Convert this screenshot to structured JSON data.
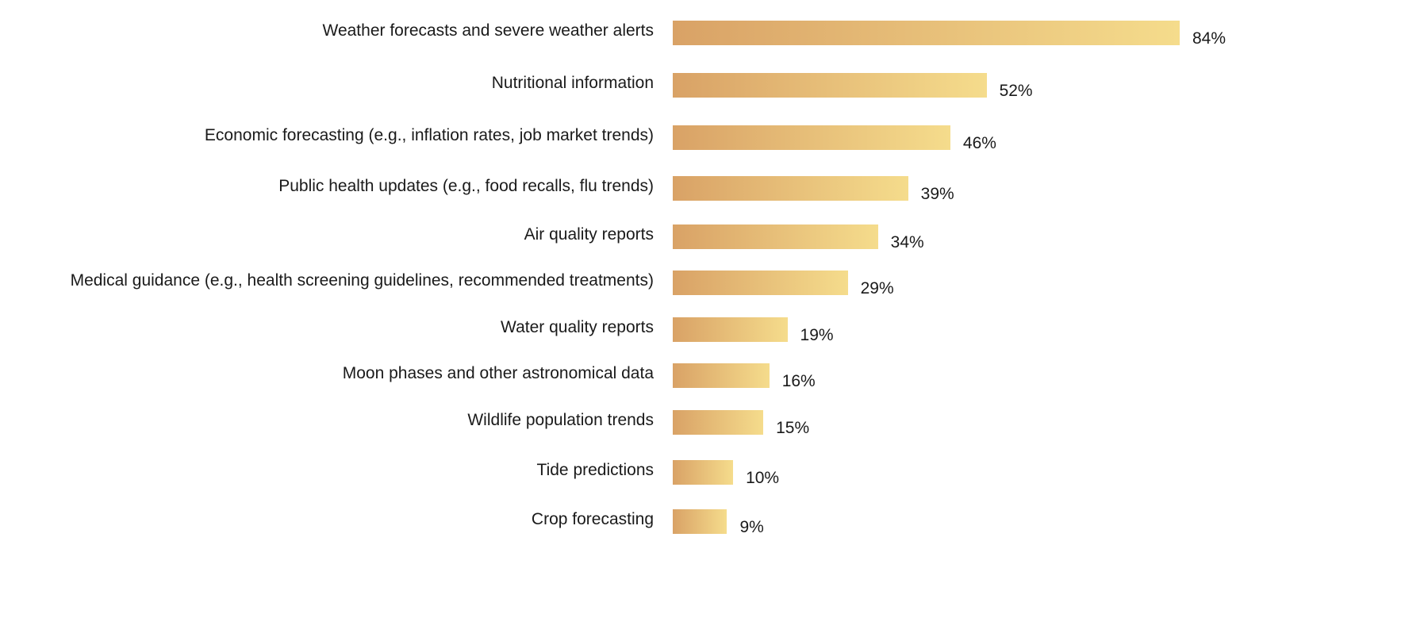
{
  "chart_data": {
    "type": "bar",
    "orientation": "horizontal",
    "title": "",
    "xlabel": "",
    "ylabel": "",
    "xlim": [
      0,
      84
    ],
    "grid": false,
    "value_format": "percent",
    "gradient_colors": [
      "#d9a266",
      "#f5dc8c"
    ],
    "categories": [
      "Weather forecasts and severe weather alerts",
      "Nutritional information",
      "Economic forecasting (e.g., inflation rates, job market trends)",
      "Public health updates (e.g., food recalls, flu trends)",
      "Air quality reports",
      "Medical guidance (e.g., health screening guidelines, recommended treatments)",
      "Water quality reports",
      "Moon phases and other astronomical data",
      "Wildlife population trends",
      "Tide predictions",
      "Crop forecasting"
    ],
    "values": [
      84,
      52,
      46,
      39,
      34,
      29,
      19,
      16,
      15,
      10,
      9
    ],
    "labels": [
      "84%",
      "52%",
      "46%",
      "39%",
      "34%",
      "29%",
      "19%",
      "16%",
      "15%",
      "10%",
      "9%"
    ]
  }
}
